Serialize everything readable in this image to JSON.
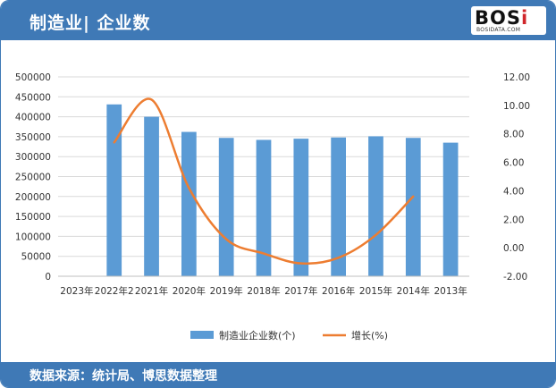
{
  "header": {
    "title": "制造业| 企业数"
  },
  "logo": {
    "mark_main": "BOS",
    "mark_accent": "i",
    "subtitle": "BOSIDATA.COM"
  },
  "footer": {
    "source": "数据来源：统计局、博思数据整理"
  },
  "colors": {
    "bar": "#5b9bd5",
    "line": "#ed7d31",
    "header": "#3f79b6",
    "grid": "#d9d9d9"
  },
  "chart_data": {
    "type": "bar",
    "categories": [
      "2023年",
      "2022年2",
      "2021年",
      "2020年",
      "2019年",
      "2018年",
      "2017年",
      "2016年",
      "2015年",
      "2014年",
      "2013年"
    ],
    "series": [
      {
        "name": "制造业企业数(个)",
        "type": "bar",
        "axis": "left",
        "values": [
          null,
          431000,
          400000,
          362000,
          347000,
          342000,
          345000,
          348000,
          351000,
          347000,
          335000
        ]
      },
      {
        "name": "增长(%)",
        "type": "line",
        "axis": "right",
        "values": [
          null,
          7.4,
          10.4,
          4.2,
          0.6,
          -0.4,
          -1.1,
          -0.7,
          0.9,
          3.6,
          null
        ]
      }
    ],
    "ylim": [
      0,
      500000
    ],
    "y_ticks": [
      "0",
      "50000",
      "100000",
      "150000",
      "200000",
      "250000",
      "300000",
      "350000",
      "400000",
      "450000",
      "500000"
    ],
    "y2lim": [
      -2,
      12
    ],
    "y2_ticks": [
      "-2.00",
      "0.00",
      "2.00",
      "4.00",
      "6.00",
      "8.00",
      "10.00",
      "12.00"
    ],
    "grid": true,
    "legend": "bottom"
  }
}
